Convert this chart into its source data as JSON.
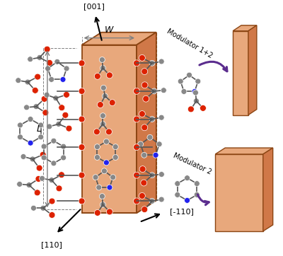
{
  "bg_color": "#ffffff",
  "crystal_face_color": "#e8a87c",
  "crystal_face_color2": "#d07848",
  "crystal_edge_color": "#8b4513",
  "arrow_color": "#5b2d8e",
  "atom_gray": "#888888",
  "atom_red": "#dd2200",
  "atom_blue": "#2222ee",
  "bond_color": "#555555",
  "mod1_label": "Modulator 1+2",
  "mod2_label": "Modulator 2",
  "label_001": "[001]",
  "label_110": "[110]",
  "label_m110": "[-110]",
  "label_W": "W",
  "label_L": "L"
}
